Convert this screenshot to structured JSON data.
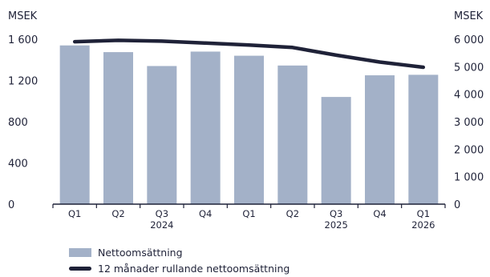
{
  "chart_data": {
    "type": "bar",
    "categories": [
      "Q1",
      "Q2",
      "Q3",
      "Q4",
      "Q1",
      "Q2",
      "Q3",
      "Q4",
      "Q1"
    ],
    "years": [
      {
        "label": "2024",
        "under_index": 2
      },
      {
        "label": "2025",
        "under_index": 6
      },
      {
        "label": "2026",
        "under_index": 8
      }
    ],
    "series": [
      {
        "name": "Nettoomsättning",
        "axis": "left",
        "type": "bar",
        "values": [
          1540,
          1475,
          1340,
          1480,
          1440,
          1345,
          1040,
          1250,
          1255
        ]
      },
      {
        "name": "12 månader rullande nettoomsättning",
        "axis": "right",
        "type": "line",
        "values": [
          5910,
          5960,
          5930,
          5860,
          5790,
          5700,
          5420,
          5170,
          4980
        ]
      }
    ],
    "y_left": {
      "label": "MSEK",
      "ylim": [
        0,
        1600
      ],
      "ticks": [
        0,
        400,
        800,
        1200,
        1600
      ],
      "tick_labels": [
        "0",
        "400",
        "800",
        "1 200",
        "1 600"
      ]
    },
    "y_right": {
      "label": "MSEK",
      "ylim": [
        0,
        6000
      ],
      "ticks": [
        0,
        1000,
        2000,
        3000,
        4000,
        5000,
        6000
      ],
      "tick_labels": [
        "0",
        "1 000",
        "2 000",
        "3 000",
        "4 000",
        "5 000",
        "6 000"
      ]
    },
    "colors": {
      "bar": "#a3b1c8",
      "line": "#1f2238",
      "axis": "#1f2238"
    },
    "legend_position": "bottom-left",
    "grid": false
  }
}
